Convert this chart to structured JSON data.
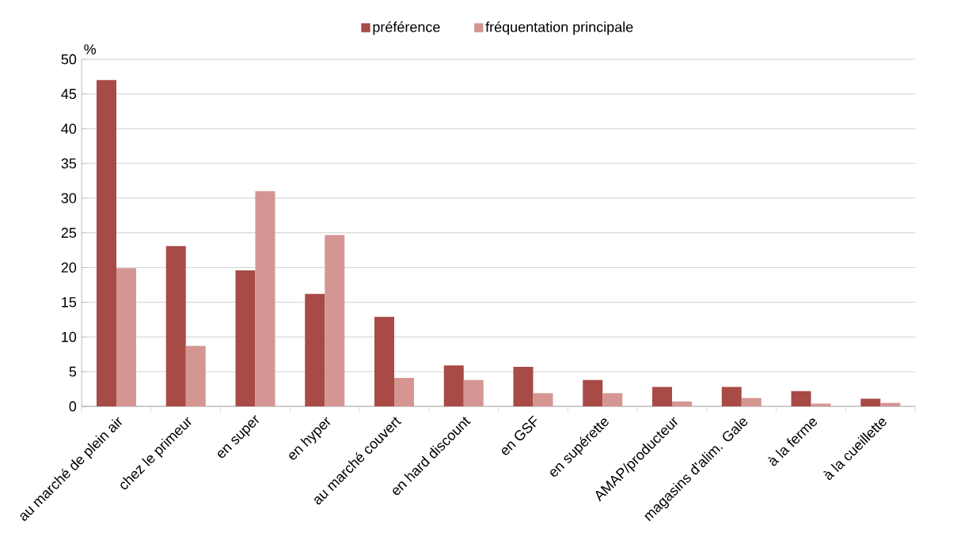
{
  "chart_data": {
    "type": "bar",
    "ylabel": "%",
    "categories": [
      "au marché de plein air",
      "chez le primeur",
      "en super",
      "en hyper",
      "au marché couvert",
      "en hard discount",
      "en GSF",
      "en supérette",
      "AMAP/producteur",
      "magasins d'alim. Gale",
      "à la ferme",
      "à la cueillette"
    ],
    "series": [
      {
        "name": "préférence",
        "color": "#a84a45",
        "values": [
          47,
          23.1,
          19.6,
          16.2,
          12.9,
          5.9,
          5.7,
          3.8,
          2.8,
          2.8,
          2.2,
          1.1
        ]
      },
      {
        "name": "fréquentation principale",
        "color": "#d49593",
        "values": [
          19.9,
          8.7,
          31,
          24.7,
          4.1,
          3.8,
          1.9,
          1.9,
          0.7,
          1.2,
          0.4,
          0.5
        ]
      }
    ],
    "ylim": [
      0,
      50
    ],
    "yticks": [
      0,
      5,
      10,
      15,
      20,
      25,
      30,
      35,
      40,
      45,
      50
    ],
    "grid": "y",
    "legend": "top"
  }
}
